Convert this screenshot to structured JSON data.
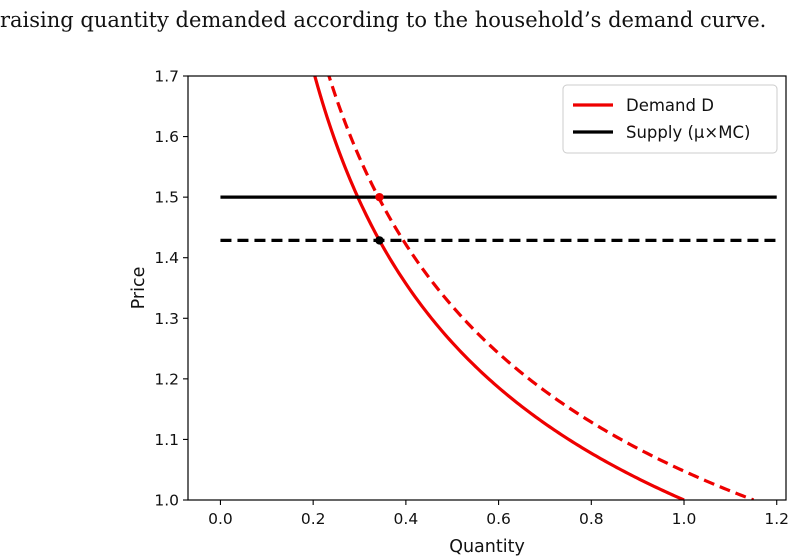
{
  "caption": "raising quantity demanded according to the household’s demand curve.",
  "chart_data": {
    "type": "line",
    "xlabel": "Quantity",
    "ylabel": "Price",
    "xlim": [
      -0.07,
      1.22
    ],
    "ylim": [
      1.0,
      1.7
    ],
    "xticks": [
      "0.0",
      "0.2",
      "0.4",
      "0.6",
      "0.8",
      "1.0",
      "1.2"
    ],
    "yticks": [
      "1.0",
      "1.1",
      "1.2",
      "1.3",
      "1.4",
      "1.5",
      "1.6",
      "1.7"
    ],
    "grid": false,
    "legend_position": "top-right",
    "series": [
      {
        "name": "Demand D",
        "kind": "demand",
        "k": 1.0,
        "color": "#ee0000",
        "style": "solid",
        "x_range": [
          0.2,
          1.0
        ]
      },
      {
        "kind": "demand",
        "k": 1.15,
        "color": "#ee0000",
        "style": "dashed",
        "x_range": [
          0.23,
          1.15
        ]
      },
      {
        "name": "Supply (μ×MC)",
        "kind": "horizontal",
        "y": 1.5,
        "color": "#000000",
        "style": "solid",
        "x_range": [
          0.0,
          1.2
        ]
      },
      {
        "kind": "horizontal",
        "y": 1.4286,
        "color": "#000000",
        "style": "dashed",
        "x_range": [
          0.0,
          1.2
        ]
      }
    ],
    "points": [
      {
        "x": 0.343,
        "y": 1.5,
        "color": "#ee0000"
      },
      {
        "x": 0.343,
        "y": 1.4286,
        "color": "#000000"
      }
    ]
  }
}
